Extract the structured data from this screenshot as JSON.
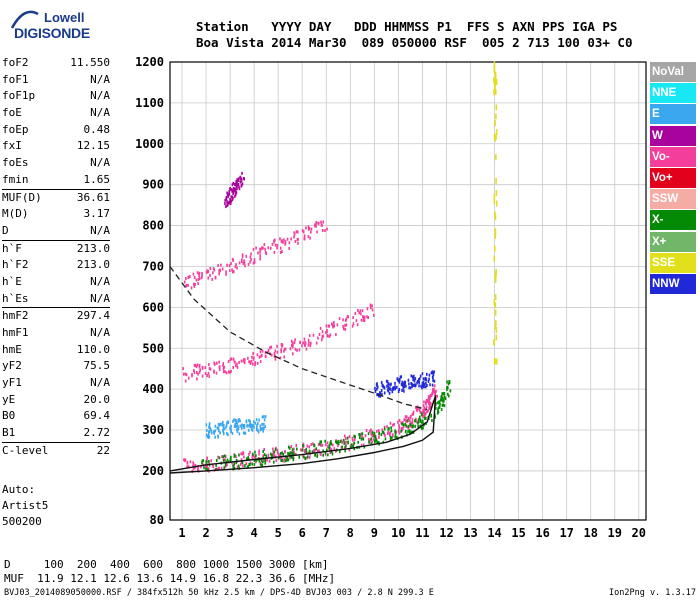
{
  "logo": {
    "line1": "Lowell",
    "line2": "DIGISONDE"
  },
  "header": {
    "labels": "Station   YYYY DAY   DDD HHMMSS P1  FFS S AXN PPS IGA PS",
    "values": "Boa Vista 2014 Mar30  089 050000 RSF  005 2 713 100 03+ C0"
  },
  "params": [
    {
      "name": "foF2",
      "value": "11.550"
    },
    {
      "name": "foF1",
      "value": "N/A"
    },
    {
      "name": "foF1p",
      "value": "N/A"
    },
    {
      "name": "foE",
      "value": "N/A"
    },
    {
      "name": "foEp",
      "value": "0.48"
    },
    {
      "name": "fxI",
      "value": "12.15"
    },
    {
      "name": "foEs",
      "value": "N/A"
    },
    {
      "name": "fmin",
      "value": "1.65"
    },
    {
      "name": "MUF(D)",
      "value": "36.61",
      "sep": true
    },
    {
      "name": "M(D)",
      "value": "3.17"
    },
    {
      "name": "D",
      "value": "N/A"
    },
    {
      "name": "h`F",
      "value": "213.0",
      "sep": true
    },
    {
      "name": "h`F2",
      "value": "213.0"
    },
    {
      "name": "h`E",
      "value": "N/A"
    },
    {
      "name": "h`Es",
      "value": "N/A"
    },
    {
      "name": "hmF2",
      "value": "297.4",
      "sep": true
    },
    {
      "name": "hmF1",
      "value": "N/A"
    },
    {
      "name": "hmE",
      "value": "110.0"
    },
    {
      "name": "yF2",
      "value": "75.5"
    },
    {
      "name": "yF1",
      "value": "N/A"
    },
    {
      "name": "yE",
      "value": "20.0"
    },
    {
      "name": "B0",
      "value": "69.4"
    },
    {
      "name": "B1",
      "value": "2.72"
    },
    {
      "name": "C-level",
      "value": "22",
      "sep": true
    }
  ],
  "auto": {
    "l1": "Auto:",
    "l2": "Artist5",
    "l3": "500200"
  },
  "legend": [
    {
      "label": "NoVal",
      "color": "#a6a6a6"
    },
    {
      "label": "NNE",
      "color": "#17e8f3"
    },
    {
      "label": "E",
      "color": "#3ba7ee"
    },
    {
      "label": "W",
      "color": "#a8049d"
    },
    {
      "label": "Vo-",
      "color": "#f33e9c"
    },
    {
      "label": "Vo+",
      "color": "#e3001c"
    },
    {
      "label": "SSW",
      "color": "#f5aca5"
    },
    {
      "label": "X-",
      "color": "#058a05"
    },
    {
      "label": "X+",
      "color": "#72b66a"
    },
    {
      "label": "SSE",
      "color": "#e2e01d"
    },
    {
      "label": "NNW",
      "color": "#2028d8"
    }
  ],
  "muf_table": {
    "d_row": "D     100  200  400  600  800 1000 1500 3000 [km]",
    "muf_row": "MUF  11.9 12.1 12.6 13.6 14.9 16.8 22.3 36.6 [MHz]"
  },
  "footer": {
    "left": "BVJ03_2014089050000.RSF / 384fx512h 50 kHz 2.5 km / DPS-4D BVJ03 003 / 2.8 N 299.3 E",
    "right": "Ion2Png v. 1.3.17"
  },
  "chart_data": {
    "type": "scatter",
    "xlim": [
      0.5,
      20.3
    ],
    "ylim": [
      80,
      1200
    ],
    "x_ticks": [
      1,
      2,
      3,
      4,
      5,
      6,
      7,
      8,
      9,
      10,
      11,
      12,
      13,
      14,
      15,
      16,
      17,
      18,
      19,
      20
    ],
    "y_ticks": [
      80,
      200,
      300,
      400,
      500,
      600,
      700,
      800,
      900,
      1000,
      1100,
      1200
    ],
    "grid": true,
    "legend_position": "right",
    "traces": [
      {
        "name": "F2 O-trace",
        "color": "#f33e9c",
        "freq": [
          1.0,
          2.0,
          3.0,
          4.0,
          5.0,
          6.0,
          7.0,
          8.0,
          9.0,
          10.0,
          10.5,
          11.0,
          11.3,
          11.55
        ],
        "height": [
          215,
          220,
          228,
          236,
          244,
          252,
          262,
          274,
          290,
          312,
          330,
          352,
          370,
          400
        ]
      },
      {
        "name": "F2 X-trace",
        "color": "#058a05",
        "freq": [
          1.8,
          3.0,
          4.0,
          5.0,
          6.0,
          7.0,
          8.0,
          9.0,
          10.0,
          10.8,
          11.4,
          11.8,
          12.1
        ],
        "height": [
          218,
          225,
          232,
          240,
          250,
          260,
          272,
          285,
          300,
          320,
          345,
          375,
          410
        ]
      },
      {
        "name": "2F2 trace",
        "color": "#f33e9c",
        "freq": [
          1.0,
          2.0,
          3.0,
          4.0,
          5.0,
          6.0,
          7.0,
          8.0,
          9.0
        ],
        "height": [
          440,
          448,
          460,
          475,
          495,
          515,
          545,
          570,
          600
        ]
      },
      {
        "name": "3F2 trace",
        "color": "#f33e9c",
        "freq": [
          1.0,
          2.0,
          3.0,
          4.0,
          5.0,
          6.0,
          7.0
        ],
        "height": [
          660,
          680,
          705,
          730,
          755,
          780,
          810
        ]
      },
      {
        "name": "4F2 trace",
        "color": "#a8049d",
        "freq": [
          2.8,
          3.0,
          3.2,
          3.5
        ],
        "height": [
          860,
          880,
          900,
          915
        ]
      },
      {
        "name": "NNW cluster",
        "color": "#2028d8",
        "freq": [
          9.0,
          9.5,
          10.0,
          10.5,
          11.0,
          11.5
        ],
        "height": [
          400,
          410,
          415,
          420,
          425,
          430
        ]
      },
      {
        "name": "E cluster",
        "color": "#3ba7ee",
        "freq": [
          2.0,
          2.5,
          3.0,
          3.5,
          4.0,
          4.5
        ],
        "height": [
          300,
          305,
          310,
          312,
          315,
          320
        ]
      },
      {
        "name": "SSE interference",
        "color": "#e2e01d",
        "freq": [
          14.0,
          14.0,
          14.0,
          14.0,
          14.0,
          14.0
        ],
        "height": [
          450,
          600,
          800,
          1000,
          1150,
          1200
        ]
      }
    ],
    "profile_dashed": {
      "freq": [
        0.5,
        1.5,
        3.0,
        4.5,
        6.0,
        7.5,
        9.0,
        10.2,
        11.2
      ],
      "height": [
        700,
        620,
        540,
        490,
        450,
        420,
        390,
        365,
        350
      ]
    },
    "profile_solid": {
      "freq": [
        0.5,
        2.0,
        4.0,
        6.0,
        8.0,
        9.5,
        10.5,
        11.2,
        11.55,
        11.45,
        11.0,
        10.2,
        9.0,
        7.5,
        6.0,
        4.0,
        2.0,
        0.5
      ],
      "height": [
        200,
        215,
        228,
        240,
        255,
        270,
        290,
        320,
        385,
        295,
        275,
        260,
        245,
        230,
        218,
        208,
        200,
        195
      ]
    }
  }
}
